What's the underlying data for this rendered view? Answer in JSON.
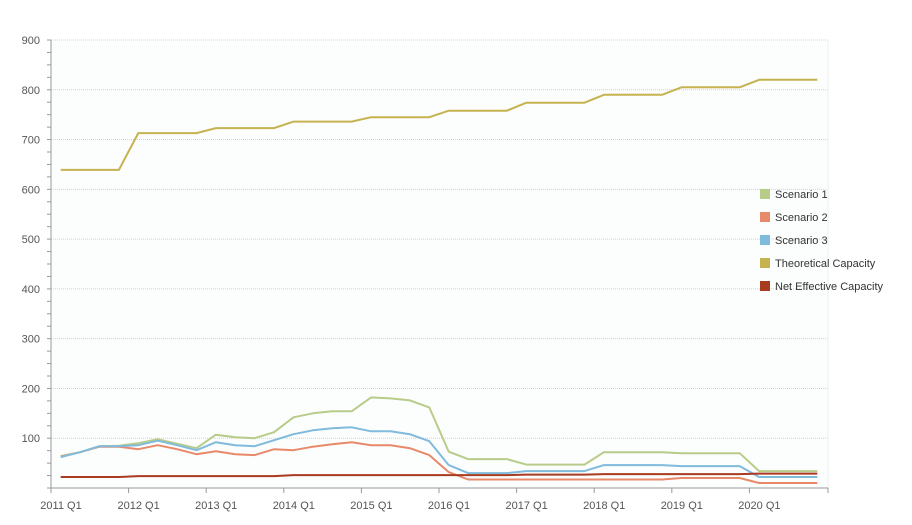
{
  "chart_data": {
    "type": "line",
    "title": "",
    "xlabel": "",
    "ylabel": "",
    "ylim": [
      0,
      900
    ],
    "yticks": [
      100,
      200,
      300,
      400,
      500,
      600,
      700,
      800,
      900
    ],
    "grid": true,
    "legend_position": "right",
    "x_tick_labels": [
      "2011 Q1",
      "2012 Q1",
      "2013 Q1",
      "2014 Q1",
      "2015 Q1",
      "2016 Q1",
      "2017 Q1",
      "2018 Q1",
      "2019 Q1",
      "2020 Q1"
    ],
    "x": [
      "2011 Q1",
      "2011 Q2",
      "2011 Q3",
      "2011 Q4",
      "2012 Q1",
      "2012 Q2",
      "2012 Q3",
      "2012 Q4",
      "2013 Q1",
      "2013 Q2",
      "2013 Q3",
      "2013 Q4",
      "2014 Q1",
      "2014 Q2",
      "2014 Q3",
      "2014 Q4",
      "2015 Q1",
      "2015 Q2",
      "2015 Q3",
      "2015 Q4",
      "2016 Q1",
      "2016 Q2",
      "2016 Q3",
      "2016 Q4",
      "2017 Q1",
      "2017 Q2",
      "2017 Q3",
      "2017 Q4",
      "2018 Q1",
      "2018 Q2",
      "2018 Q3",
      "2018 Q4",
      "2019 Q1",
      "2019 Q2",
      "2019 Q3",
      "2019 Q4",
      "2020 Q1",
      "2020 Q2",
      "2020 Q3",
      "2020 Q4"
    ],
    "series": [
      {
        "name": "Scenario 1",
        "color": "#b8cc8a",
        "values": [
          64,
          72,
          84,
          85,
          90,
          98,
          89,
          80,
          107,
          102,
          100,
          112,
          142,
          150,
          154,
          154,
          182,
          180,
          176,
          162,
          73,
          58,
          58,
          58,
          47,
          47,
          47,
          47,
          72,
          72,
          72,
          72,
          70,
          70,
          70,
          70,
          34,
          34,
          34,
          34
        ]
      },
      {
        "name": "Scenario 2",
        "color": "#e8896a",
        "values": [
          63,
          72,
          83,
          83,
          78,
          86,
          78,
          68,
          74,
          68,
          66,
          78,
          76,
          83,
          88,
          92,
          86,
          86,
          80,
          66,
          32,
          17,
          17,
          17,
          17,
          17,
          17,
          17,
          17,
          17,
          17,
          17,
          20,
          20,
          20,
          20,
          10,
          10,
          10,
          10
        ]
      },
      {
        "name": "Scenario 3",
        "color": "#7fbbdc",
        "values": [
          62,
          72,
          84,
          84,
          86,
          95,
          86,
          76,
          92,
          86,
          84,
          96,
          108,
          116,
          120,
          122,
          114,
          114,
          108,
          94,
          46,
          30,
          30,
          30,
          34,
          34,
          34,
          34,
          46,
          46,
          46,
          46,
          44,
          44,
          44,
          44,
          22,
          22,
          22,
          22
        ]
      },
      {
        "name": "Theoretical Capacity",
        "color": "#c5b350",
        "values": [
          639,
          639,
          639,
          639,
          713,
          713,
          713,
          713,
          723,
          723,
          723,
          723,
          736,
          736,
          736,
          736,
          745,
          745,
          745,
          745,
          758,
          758,
          758,
          758,
          774,
          774,
          774,
          774,
          790,
          790,
          790,
          790,
          805,
          805,
          805,
          805,
          820,
          820,
          820,
          820
        ]
      },
      {
        "name": "Net Effective Capacity",
        "color": "#a93b20",
        "values": [
          22,
          22,
          22,
          22,
          24,
          24,
          24,
          24,
          24,
          24,
          24,
          24,
          26,
          26,
          26,
          26,
          26,
          26,
          26,
          26,
          26,
          26,
          26,
          26,
          27,
          27,
          27,
          27,
          28,
          28,
          28,
          28,
          28,
          28,
          28,
          28,
          29,
          29,
          29,
          29
        ]
      }
    ]
  }
}
